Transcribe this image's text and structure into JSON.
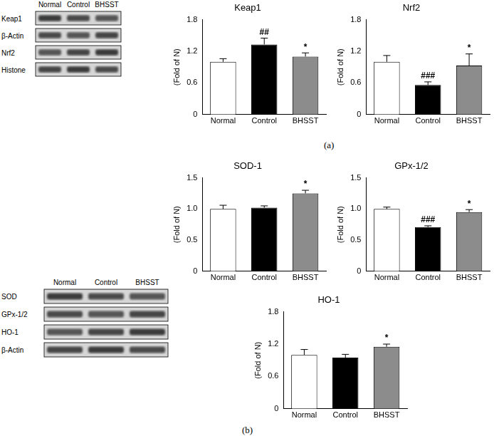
{
  "chart_data": [
    {
      "type": "bar",
      "title": "Keap1",
      "y_label": "(Fold of N)",
      "categories": [
        "Normal",
        "Control",
        "BHSST"
      ],
      "values": [
        1.0,
        1.33,
        1.1
      ],
      "errors": [
        0.06,
        0.12,
        0.07
      ],
      "colors": [
        "#ffffff",
        "#000000",
        "#8c8c8c"
      ],
      "ylim": [
        0,
        1.8
      ],
      "yticks": [
        0,
        0.6,
        1.2,
        1.8
      ],
      "grid": false,
      "annotations": [
        {
          "category": "Control",
          "text": "##"
        },
        {
          "category": "BHSST",
          "text": "*"
        }
      ]
    },
    {
      "type": "bar",
      "title": "Nrf2",
      "y_label": "(Fold of N)",
      "categories": [
        "Normal",
        "Control",
        "BHSST"
      ],
      "values": [
        1.0,
        0.56,
        0.93
      ],
      "errors": [
        0.12,
        0.06,
        0.22
      ],
      "colors": [
        "#ffffff",
        "#000000",
        "#8c8c8c"
      ],
      "ylim": [
        0,
        1.8
      ],
      "yticks": [
        0,
        0.6,
        1.2,
        1.8
      ],
      "grid": false,
      "annotations": [
        {
          "category": "Control",
          "text": "###"
        },
        {
          "category": "BHSST",
          "text": "*"
        }
      ]
    },
    {
      "type": "bar",
      "title": "SOD-1",
      "y_label": "(Fold of N)",
      "categories": [
        "Normal",
        "Control",
        "BHSST"
      ],
      "values": [
        1.0,
        1.02,
        1.25
      ],
      "errors": [
        0.06,
        0.03,
        0.05
      ],
      "colors": [
        "#ffffff",
        "#000000",
        "#8c8c8c"
      ],
      "ylim": [
        0,
        1.5
      ],
      "yticks": [
        0,
        0.5,
        {
          "value": 1,
          "label": "1.0"
        },
        1.5
      ],
      "grid": false,
      "annotations": [
        {
          "category": "BHSST",
          "text": "*"
        }
      ]
    },
    {
      "type": "bar",
      "title": "GPx-1/2",
      "y_label": "(Fold of N)",
      "categories": [
        "Normal",
        "Control",
        "BHSST"
      ],
      "values": [
        1.0,
        0.71,
        0.95
      ],
      "errors": [
        0.03,
        0.02,
        0.04
      ],
      "colors": [
        "#ffffff",
        "#000000",
        "#8c8c8c"
      ],
      "ylim": [
        0,
        1.5
      ],
      "yticks": [
        0,
        0.5,
        {
          "value": 1,
          "label": "1.0"
        },
        1.5
      ],
      "grid": false,
      "annotations": [
        {
          "category": "Control",
          "text": "###"
        },
        {
          "category": "BHSST",
          "text": "*"
        }
      ]
    },
    {
      "type": "bar",
      "title": "HO-1",
      "y_label": "(Fold of N)",
      "categories": [
        "Normal",
        "Control",
        "BHSST"
      ],
      "values": [
        1.0,
        0.95,
        1.15
      ],
      "errors": [
        0.1,
        0.06,
        0.05
      ],
      "colors": [
        "#ffffff",
        "#000000",
        "#8c8c8c"
      ],
      "ylim": [
        0,
        1.8
      ],
      "yticks": [
        0,
        0.6,
        1.2,
        1.8
      ],
      "grid": false,
      "annotations": [
        {
          "category": "BHSST",
          "text": "*"
        }
      ]
    }
  ],
  "panels": [
    {
      "label": "(a)",
      "blot": {
        "lanes": [
          "Normal",
          "Control",
          "BHSST"
        ],
        "rows": [
          "Keap1",
          "β-Actin",
          "Nrf2",
          "Histone"
        ]
      }
    },
    {
      "label": "(b)",
      "blot": {
        "lanes": [
          "Normal",
          "Control",
          "BHSST"
        ],
        "rows": [
          "SOD",
          "GPx-1/2",
          "HO-1",
          "β-Actin"
        ]
      }
    }
  ]
}
